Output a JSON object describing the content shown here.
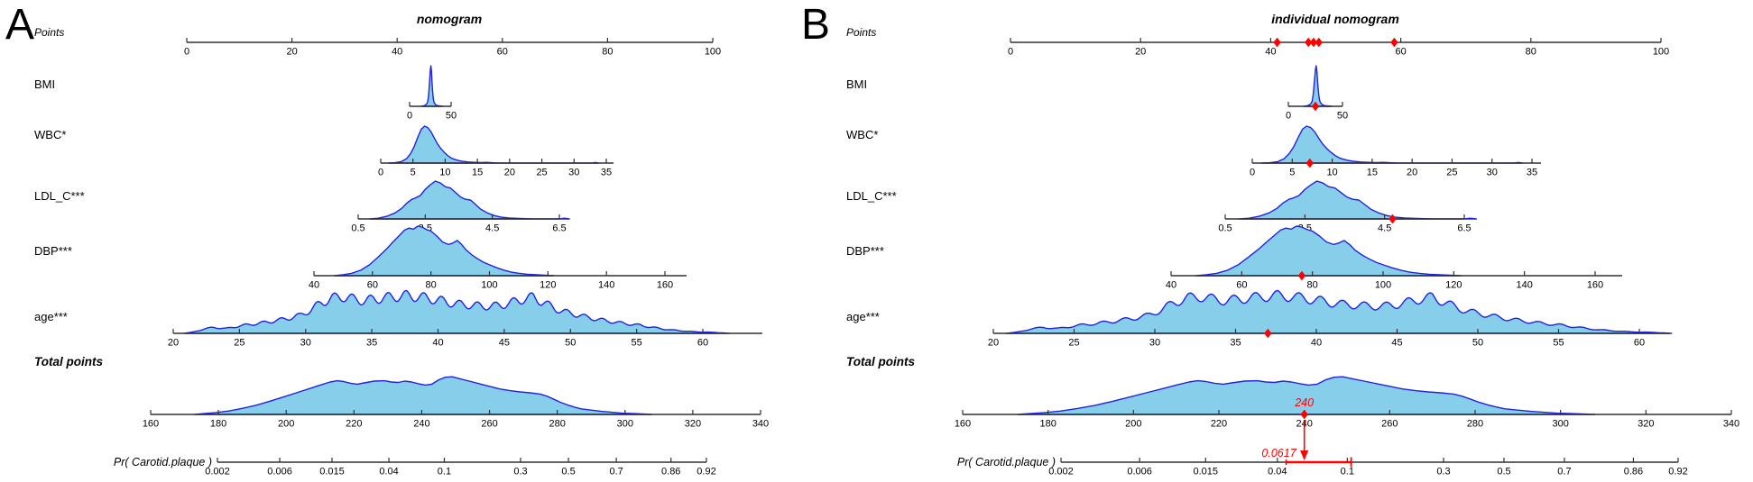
{
  "chart_data": {
    "type": "area",
    "subtype": "nomogram-with-density-ridges",
    "colors": {
      "density_fill": "#87CEEB",
      "density_stroke": "#2222E0",
      "axis": "#303030",
      "text": "#000000",
      "marker": "#FF0000"
    },
    "panels": [
      {
        "letter": "A",
        "title": "nomogram",
        "markers": null
      },
      {
        "letter": "B",
        "title": "individual nomogram",
        "markers": {
          "points_axis": [
            41,
            45.8,
            46.6,
            47.4,
            59
          ],
          "rows": {
            "BMI": 25,
            "WBC": 7.2,
            "LDL_C": 4.7,
            "DBP": 77,
            "age": 37
          },
          "total_points": {
            "value": 240,
            "label": "240"
          },
          "probability": {
            "value": 0.0617,
            "label": "0.0617",
            "interval_low": 0.045,
            "interval_high": 0.105
          }
        }
      }
    ],
    "rows": [
      {
        "key": "points",
        "label": "Points",
        "emphasis": "italic",
        "scale": "linear",
        "min": 0,
        "max": 100,
        "ticks": [
          0,
          20,
          40,
          60,
          80,
          100
        ],
        "tick_labels": [
          "0",
          "20",
          "40",
          "60",
          "80",
          "100"
        ],
        "density": null
      },
      {
        "key": "BMI",
        "label": "BMI",
        "emphasis": null,
        "scale": "linear",
        "min": 0,
        "max": 50,
        "ticks": [
          0,
          50
        ],
        "tick_labels": [
          "0",
          "50"
        ],
        "density": {
          "points": [
            [
              14,
              0
            ],
            [
              17,
              0.01
            ],
            [
              19,
              0.03
            ],
            [
              21,
              0.07
            ],
            [
              22,
              0.13
            ],
            [
              23,
              0.3
            ],
            [
              24,
              0.6
            ],
            [
              25,
              0.9
            ],
            [
              25.7,
              1
            ],
            [
              26.4,
              0.85
            ],
            [
              27,
              0.6
            ],
            [
              27.8,
              0.35
            ],
            [
              28.6,
              0.18
            ],
            [
              29.5,
              0.1
            ],
            [
              30.5,
              0.06
            ],
            [
              32,
              0.03
            ],
            [
              34,
              0.015
            ],
            [
              37,
              0.008
            ],
            [
              40,
              0
            ]
          ]
        }
      },
      {
        "key": "WBC",
        "label": "WBC*",
        "emphasis": null,
        "scale": "linear",
        "min": 0,
        "max": 35,
        "ticks": [
          0,
          5,
          10,
          15,
          20,
          25,
          30,
          35
        ],
        "tick_labels": [
          "0",
          "5",
          "10",
          "15",
          "20",
          "25",
          "30",
          "35"
        ],
        "density": {
          "points": [
            [
              1.2,
              0
            ],
            [
              2.2,
              0.01
            ],
            [
              3.2,
              0.04
            ],
            [
              4,
              0.12
            ],
            [
              4.6,
              0.25
            ],
            [
              5.2,
              0.45
            ],
            [
              5.8,
              0.72
            ],
            [
              6.3,
              0.92
            ],
            [
              6.8,
              1
            ],
            [
              7.3,
              0.96
            ],
            [
              7.8,
              0.85
            ],
            [
              8.3,
              0.68
            ],
            [
              8.8,
              0.52
            ],
            [
              9.3,
              0.4
            ],
            [
              9.8,
              0.3
            ],
            [
              10.4,
              0.2
            ],
            [
              11,
              0.13
            ],
            [
              11.8,
              0.08
            ],
            [
              12.6,
              0.05
            ],
            [
              13.6,
              0.03
            ],
            [
              14.6,
              0.02
            ],
            [
              15.6,
              0.012
            ],
            [
              16.4,
              0.02
            ],
            [
              17.2,
              0.01
            ],
            [
              18.2,
              0
            ],
            [
              32.8,
              0
            ],
            [
              33.3,
              0.018
            ],
            [
              33.8,
              0
            ]
          ]
        }
      },
      {
        "key": "LDL_C",
        "label": "LDL_C***",
        "emphasis": null,
        "scale": "linear",
        "min": 0.5,
        "max": 6.5,
        "ticks": [
          0.5,
          2.5,
          4.5,
          6.5
        ],
        "tick_labels": [
          "0.5",
          "2.5",
          "4.5",
          "6.5"
        ],
        "density": {
          "points": [
            [
              0.85,
              0
            ],
            [
              1.1,
              0.02
            ],
            [
              1.35,
              0.07
            ],
            [
              1.6,
              0.16
            ],
            [
              1.8,
              0.28
            ],
            [
              1.95,
              0.42
            ],
            [
              2.1,
              0.52
            ],
            [
              2.2,
              0.55
            ],
            [
              2.35,
              0.62
            ],
            [
              2.5,
              0.78
            ],
            [
              2.65,
              0.9
            ],
            [
              2.8,
              1
            ],
            [
              2.95,
              0.95
            ],
            [
              3.1,
              0.85
            ],
            [
              3.25,
              0.82
            ],
            [
              3.4,
              0.7
            ],
            [
              3.55,
              0.58
            ],
            [
              3.7,
              0.52
            ],
            [
              3.85,
              0.5
            ],
            [
              4,
              0.38
            ],
            [
              4.15,
              0.26
            ],
            [
              4.35,
              0.16
            ],
            [
              4.55,
              0.09
            ],
            [
              4.75,
              0.05
            ],
            [
              5,
              0.025
            ],
            [
              5.3,
              0.012
            ],
            [
              5.7,
              0
            ],
            [
              6.5,
              0
            ],
            [
              6.65,
              0.02
            ],
            [
              6.8,
              0
            ]
          ]
        }
      },
      {
        "key": "DBP",
        "label": "DBP***",
        "emphasis": null,
        "scale": "linear",
        "min": 40,
        "max": 160,
        "ticks": [
          40,
          60,
          80,
          100,
          120,
          140,
          160
        ],
        "tick_labels": [
          "40",
          "60",
          "80",
          "100",
          "120",
          "140",
          "160"
        ],
        "density": {
          "points": [
            [
              47,
              0
            ],
            [
              50,
              0.02
            ],
            [
              53,
              0.05
            ],
            [
              56,
              0.11
            ],
            [
              59,
              0.22
            ],
            [
              62,
              0.38
            ],
            [
              65,
              0.55
            ],
            [
              67,
              0.68
            ],
            [
              69,
              0.8
            ],
            [
              71,
              0.92
            ],
            [
              72.5,
              0.96
            ],
            [
              74,
              0.94
            ],
            [
              75.5,
              1
            ],
            [
              77,
              0.98
            ],
            [
              78.5,
              0.93
            ],
            [
              80,
              0.9
            ],
            [
              82,
              0.8
            ],
            [
              84,
              0.68
            ],
            [
              86,
              0.63
            ],
            [
              87.5,
              0.66
            ],
            [
              89,
              0.71
            ],
            [
              90.5,
              0.63
            ],
            [
              92,
              0.52
            ],
            [
              94,
              0.42
            ],
            [
              96,
              0.34
            ],
            [
              98,
              0.27
            ],
            [
              100,
              0.22
            ],
            [
              102.5,
              0.16
            ],
            [
              105,
              0.11
            ],
            [
              107.5,
              0.07
            ],
            [
              110,
              0.05
            ],
            [
              113,
              0.03
            ],
            [
              116,
              0.02
            ],
            [
              119,
              0.01
            ],
            [
              122,
              0
            ]
          ]
        }
      },
      {
        "key": "age",
        "label": "age***",
        "emphasis": null,
        "scale": "linear",
        "min": 20,
        "max": 60,
        "ticks": [
          20,
          25,
          30,
          35,
          40,
          45,
          50,
          55,
          60
        ],
        "tick_labels": [
          "20",
          "25",
          "30",
          "35",
          "40",
          "45",
          "50",
          "55",
          "60"
        ],
        "density": {
          "points": [
            [
              20.8,
              0
            ],
            [
              21.5,
              0.03
            ],
            [
              22.3,
              0.1
            ],
            [
              23.1,
              0.14
            ],
            [
              24,
              0.11
            ],
            [
              24.8,
              0.16
            ],
            [
              25.6,
              0.2
            ],
            [
              26.4,
              0.23
            ],
            [
              27.2,
              0.27
            ],
            [
              28,
              0.31
            ],
            [
              28.8,
              0.36
            ],
            [
              29.6,
              0.42
            ],
            [
              30.4,
              0.55
            ],
            [
              31.2,
              0.72
            ],
            [
              32,
              0.82
            ],
            [
              32.8,
              0.86
            ],
            [
              33.6,
              0.8
            ],
            [
              34.4,
              0.76
            ],
            [
              35.2,
              0.8
            ],
            [
              36,
              0.83
            ],
            [
              36.8,
              0.86
            ],
            [
              37.6,
              0.88
            ],
            [
              38.4,
              0.86
            ],
            [
              39.2,
              0.82
            ],
            [
              40,
              0.78
            ],
            [
              40.8,
              0.72
            ],
            [
              41.6,
              0.68
            ],
            [
              42.4,
              0.66
            ],
            [
              43.2,
              0.64
            ],
            [
              44,
              0.63
            ],
            [
              44.8,
              0.66
            ],
            [
              45.6,
              0.72
            ],
            [
              46.4,
              0.8
            ],
            [
              47.2,
              0.84
            ],
            [
              48,
              0.72
            ],
            [
              48.8,
              0.58
            ],
            [
              49.6,
              0.5
            ],
            [
              50.4,
              0.44
            ],
            [
              51.2,
              0.38
            ],
            [
              52,
              0.33
            ],
            [
              52.8,
              0.29
            ],
            [
              53.6,
              0.25
            ],
            [
              54.4,
              0.22
            ],
            [
              55.2,
              0.19
            ],
            [
              56,
              0.15
            ],
            [
              56.8,
              0.11
            ],
            [
              57.6,
              0.08
            ],
            [
              58.4,
              0.06
            ],
            [
              59.2,
              0.04
            ],
            [
              60,
              0.03
            ],
            [
              61,
              0.02
            ],
            [
              62,
              0
            ]
          ],
          "ripple": {
            "amplitude": 0.24,
            "period": 1.35,
            "phase": 20.7
          }
        }
      },
      {
        "key": "total",
        "label": "Total points",
        "emphasis": "bold-italic",
        "scale": "linear",
        "min": 160,
        "max": 340,
        "ticks": [
          160,
          180,
          200,
          220,
          240,
          260,
          280,
          300,
          320,
          340
        ],
        "tick_labels": [
          "160",
          "180",
          "200",
          "220",
          "240",
          "260",
          "280",
          "300",
          "320",
          "340"
        ],
        "density": {
          "points": [
            [
              173,
              0
            ],
            [
              176,
              0.02
            ],
            [
              179,
              0.04
            ],
            [
              183,
              0.08
            ],
            [
              187,
              0.14
            ],
            [
              191,
              0.21
            ],
            [
              195,
              0.3
            ],
            [
              199,
              0.4
            ],
            [
              203,
              0.5
            ],
            [
              207,
              0.6
            ],
            [
              210,
              0.68
            ],
            [
              213,
              0.75
            ],
            [
              215,
              0.78
            ],
            [
              217,
              0.76
            ],
            [
              219,
              0.72
            ],
            [
              221,
              0.7
            ],
            [
              223,
              0.73
            ],
            [
              226,
              0.77
            ],
            [
              229,
              0.78
            ],
            [
              231,
              0.75
            ],
            [
              233,
              0.74
            ],
            [
              235,
              0.77
            ],
            [
              237,
              0.75
            ],
            [
              239,
              0.71
            ],
            [
              241,
              0.68
            ],
            [
              243,
              0.7
            ],
            [
              245,
              0.8
            ],
            [
              247,
              0.86
            ],
            [
              249,
              0.87
            ],
            [
              251,
              0.83
            ],
            [
              254,
              0.77
            ],
            [
              257,
              0.71
            ],
            [
              260,
              0.65
            ],
            [
              263,
              0.59
            ],
            [
              266,
              0.55
            ],
            [
              269,
              0.52
            ],
            [
              272,
              0.5
            ],
            [
              275,
              0.47
            ],
            [
              277,
              0.42
            ],
            [
              279,
              0.35
            ],
            [
              281,
              0.28
            ],
            [
              283,
              0.22
            ],
            [
              285,
              0.17
            ],
            [
              287,
              0.13
            ],
            [
              290,
              0.1
            ],
            [
              293,
              0.07
            ],
            [
              296,
              0.05
            ],
            [
              299,
              0.03
            ],
            [
              302,
              0.02
            ],
            [
              305,
              0.01
            ],
            [
              308,
              0
            ]
          ]
        }
      },
      {
        "key": "pr",
        "label": "Pr( Carotid.plaque )",
        "emphasis": "italic",
        "scale": "logit",
        "min": 0.002,
        "max": 0.92,
        "ticks": [
          0.002,
          0.006,
          0.015,
          0.04,
          0.1,
          0.3,
          0.5,
          0.7,
          0.86,
          0.92
        ],
        "tick_labels": [
          "0.002",
          "0.006",
          "0.015",
          "0.04",
          "0.1",
          "0.3",
          "0.5",
          "0.7",
          "0.86",
          "0.92"
        ],
        "density": null
      }
    ]
  }
}
